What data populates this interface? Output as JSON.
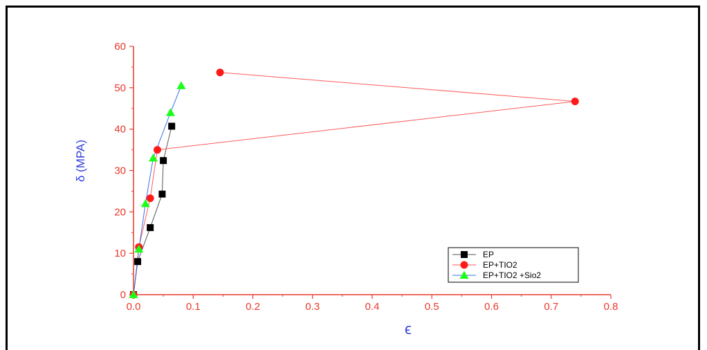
{
  "chart_data": {
    "type": "line",
    "xlabel": "ϵ",
    "ylabel": "δ (MPA)",
    "xlim": [
      0.0,
      0.8
    ],
    "ylim": [
      0,
      60
    ],
    "x_ticks": [
      "0.0",
      "0.1",
      "0.2",
      "0.3",
      "0.4",
      "0.5",
      "0.6",
      "0.7",
      "0.8"
    ],
    "y_ticks": [
      "0",
      "10",
      "20",
      "30",
      "40",
      "50",
      "60"
    ],
    "grid": false,
    "legend_position": "bottom-right",
    "colors": {
      "axis": "#e8382b",
      "axis_title": "#2f3fe0"
    },
    "series": [
      {
        "name": "EP",
        "marker": "square",
        "color": "#000000",
        "line_color": "#555555",
        "points": [
          [
            0.0,
            0
          ],
          [
            0.007,
            8
          ],
          [
            0.028,
            16.2
          ],
          [
            0.048,
            24.3
          ],
          [
            0.05,
            32.4
          ],
          [
            0.064,
            40.7
          ]
        ]
      },
      {
        "name": "EP+TIO2",
        "marker": "circle",
        "color": "#ff1a1a",
        "line_color": "#ff5a5a",
        "points": [
          [
            0.0,
            0
          ],
          [
            0.009,
            11.5
          ],
          [
            0.028,
            23.3
          ],
          [
            0.04,
            35
          ],
          [
            0.74,
            46.7
          ],
          [
            0.145,
            53.7
          ]
        ]
      },
      {
        "name": "EP+TIO2 +Sio2",
        "marker": "triangle",
        "color": "#1aff1a",
        "line_color": "#3b6fe8",
        "points": [
          [
            0.0,
            0
          ],
          [
            0.009,
            11
          ],
          [
            0.02,
            22
          ],
          [
            0.033,
            33
          ],
          [
            0.062,
            44
          ],
          [
            0.08,
            50.5
          ]
        ]
      }
    ]
  }
}
